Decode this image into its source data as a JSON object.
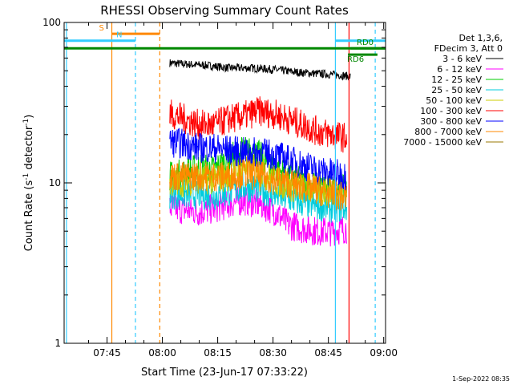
{
  "chart_data": {
    "type": "line",
    "title": "RHESSI Observing Summary Count Rates",
    "xlabel": "Start Time (23-Jun-17 07:33:22)",
    "ylabel_main": "Count Rate (s",
    "ylabel_sup1": "-1",
    "ylabel_mid": " detector",
    "ylabel_sup2": "-1",
    "ylabel_end": ")",
    "yscale": "log",
    "ylim": [
      1,
      100
    ],
    "xlim_minutes": [
      453.37,
      540.5
    ],
    "xticks": [
      {
        "minute": 465,
        "label": "07:45"
      },
      {
        "minute": 480,
        "label": "08:00"
      },
      {
        "minute": 495,
        "label": "08:15"
      },
      {
        "minute": 510,
        "label": "08:30"
      },
      {
        "minute": 525,
        "label": "08:45"
      },
      {
        "minute": 540,
        "label": "09:00"
      }
    ],
    "yticks": [
      {
        "value": 1,
        "label": "1"
      },
      {
        "value": 10,
        "label": "10"
      },
      {
        "value": 100,
        "label": "100"
      }
    ],
    "legend_header": [
      "Det 1,3,6,",
      "FDecim 3, Att 0"
    ],
    "series": [
      {
        "name": "3 - 6 keV",
        "color": "#000000",
        "x": [
          482,
          486,
          492,
          498,
          504,
          510,
          516,
          522,
          528,
          531
        ],
        "values": [
          56,
          55,
          54,
          52,
          52,
          51,
          49,
          48,
          47,
          46
        ]
      },
      {
        "name": "6 - 12 keV",
        "color": "#ff00ff",
        "x": [
          482,
          486,
          490,
          494,
          498,
          502,
          506,
          510,
          514,
          518,
          522,
          526,
          530
        ],
        "values": [
          7.0,
          6.8,
          6.6,
          6.9,
          7.4,
          7.8,
          7.4,
          6.8,
          5.5,
          5.2,
          5.0,
          5.0,
          5.2
        ]
      },
      {
        "name": "12 - 25 keV",
        "color": "#00cc00",
        "x": [
          482,
          486,
          490,
          494,
          498,
          502,
          506,
          510,
          514,
          518,
          522,
          526,
          530
        ],
        "values": [
          11.0,
          11.5,
          12.5,
          12.0,
          14.0,
          16.0,
          15.0,
          12.5,
          11.0,
          10.0,
          9.5,
          9.0,
          9.0
        ]
      },
      {
        "name": "25 - 50 keV",
        "color": "#00ccdd",
        "x": [
          482,
          486,
          490,
          494,
          498,
          502,
          506,
          510,
          514,
          518,
          522,
          526,
          530
        ],
        "values": [
          8.5,
          8.5,
          8.5,
          8.3,
          8.8,
          9.5,
          9.2,
          8.5,
          8.0,
          7.5,
          7.2,
          7.0,
          7.0
        ]
      },
      {
        "name": "50 - 100 keV",
        "color": "#cccc00",
        "x": [
          482,
          486,
          490,
          494,
          498,
          502,
          506,
          510,
          514,
          518,
          522,
          526,
          530
        ],
        "values": [
          10.0,
          10.2,
          10.5,
          10.5,
          11.0,
          12.5,
          12.0,
          10.5,
          9.5,
          9.2,
          9.0,
          8.8,
          9.0
        ]
      },
      {
        "name": "100 - 300 keV",
        "color": "#ff0000",
        "x": [
          482,
          486,
          490,
          494,
          498,
          502,
          506,
          510,
          514,
          518,
          522,
          526,
          530
        ],
        "values": [
          27,
          25,
          23,
          23,
          25,
          26,
          28,
          27,
          25,
          23,
          21,
          20,
          19
        ]
      },
      {
        "name": "300 - 800 keV",
        "color": "#0000ff",
        "x": [
          482,
          486,
          490,
          494,
          498,
          502,
          506,
          510,
          514,
          518,
          522,
          526,
          530
        ],
        "values": [
          18,
          17.5,
          16.5,
          16.5,
          16.0,
          15.5,
          15.5,
          15.0,
          14.0,
          13.0,
          12.0,
          11.5,
          11.0
        ]
      },
      {
        "name": "800 - 7000 keV",
        "color": "#ff8800",
        "x": [
          482,
          486,
          490,
          494,
          498,
          502,
          506,
          510,
          514,
          518,
          522,
          526,
          530
        ],
        "values": [
          11.0,
          11.0,
          11.0,
          11.0,
          11.0,
          11.5,
          11.0,
          10.5,
          10.0,
          9.5,
          9.0,
          8.5,
          8.0
        ]
      },
      {
        "name": "7000 - 15000 keV",
        "color": "#997700",
        "x": [],
        "values": []
      }
    ],
    "annotations": {
      "vertical_lines": [
        {
          "minute": 454.0,
          "color": "#33ccff",
          "style": "solid"
        },
        {
          "minute": 466.3,
          "color": "#ff8800",
          "style": "solid"
        },
        {
          "minute": 472.7,
          "color": "#33ccff",
          "style": "dashed"
        },
        {
          "minute": 479.3,
          "color": "#ff8800",
          "style": "dashed"
        },
        {
          "minute": 526.9,
          "color": "#33ccff",
          "style": "solid"
        },
        {
          "minute": 530.6,
          "color": "#ff0000",
          "style": "solid"
        },
        {
          "minute": 537.7,
          "color": "#33ccff",
          "style": "dashed"
        }
      ],
      "flags": [
        {
          "label": "S",
          "color": "#ff8800",
          "x0": 466.3,
          "x1": 479.3,
          "value": 85
        },
        {
          "label": "N",
          "color": "#33ccff",
          "x0": 453.37,
          "x1": 472.7,
          "value": 77
        },
        {
          "label": "",
          "color": "#33ccff",
          "x0": 526.9,
          "x1": 540.5,
          "value": 77
        },
        {
          "label": "",
          "color": "#008800",
          "x0": 453.37,
          "x1": 540.5,
          "value": 69
        },
        {
          "label": "RD0",
          "color": "#008800",
          "x0": 531.0,
          "x1": 540.5,
          "value": 69
        },
        {
          "label": "RD6",
          "color": "#008800",
          "x0": 530.3,
          "x1": 538.3,
          "value": 63
        }
      ]
    },
    "timestamp": "1-Sep-2022 08:35"
  }
}
